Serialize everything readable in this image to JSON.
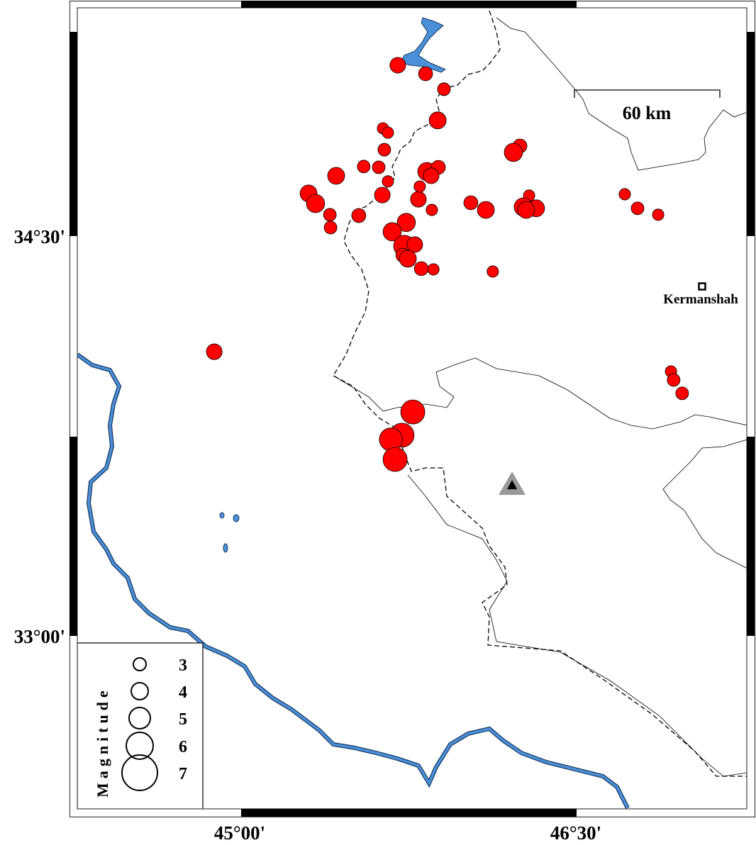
{
  "map": {
    "lon_ticks": [
      {
        "value": 45.0,
        "label": "45°00'"
      },
      {
        "value": 46.5,
        "label": "46°30'"
      }
    ],
    "lat_ticks": [
      {
        "value": 34.5,
        "label": "34°30'"
      },
      {
        "value": 33.0,
        "label": "33°00'"
      }
    ],
    "scale_bar": {
      "label": "60 km"
    },
    "city": {
      "name": "Kermanshah",
      "lon": 47.057,
      "lat": 34.311
    },
    "station_marker": {
      "lon": 46.209,
      "lat": 33.566,
      "symbol": "triangle"
    },
    "colors": {
      "event_fill": "#ff0000",
      "river": "#4a90d9",
      "marker": "#999999"
    }
  },
  "legend": {
    "title": "Magnitude",
    "entries": [
      {
        "mag": 3,
        "label": "3"
      },
      {
        "mag": 4,
        "label": "4"
      },
      {
        "mag": 5,
        "label": "5"
      },
      {
        "mag": 6,
        "label": "6"
      },
      {
        "mag": 7,
        "label": "7"
      }
    ]
  },
  "events": [
    {
      "lon": 45.699,
      "lat": 35.141,
      "mag": 3.7
    },
    {
      "lon": 45.823,
      "lat": 35.109,
      "mag": 3.3
    },
    {
      "lon": 45.905,
      "lat": 35.051,
      "mag": 3.0
    },
    {
      "lon": 45.877,
      "lat": 34.934,
      "mag": 4.0
    },
    {
      "lon": 45.633,
      "lat": 34.904,
      "mag": 2.7
    },
    {
      "lon": 45.655,
      "lat": 34.888,
      "mag": 2.7
    },
    {
      "lon": 45.639,
      "lat": 34.824,
      "mag": 3.0
    },
    {
      "lon": 45.424,
      "lat": 34.726,
      "mag": 4.0
    },
    {
      "lon": 45.547,
      "lat": 34.761,
      "mag": 3.0
    },
    {
      "lon": 45.614,
      "lat": 34.758,
      "mag": 3.0
    },
    {
      "lon": 45.655,
      "lat": 34.705,
      "mag": 2.7
    },
    {
      "lon": 45.301,
      "lat": 34.66,
      "mag": 4.0
    },
    {
      "lon": 45.332,
      "lat": 34.622,
      "mag": 4.3
    },
    {
      "lon": 45.396,
      "lat": 34.58,
      "mag": 3.0
    },
    {
      "lon": 45.399,
      "lat": 34.532,
      "mag": 3.0
    },
    {
      "lon": 45.525,
      "lat": 34.577,
      "mag": 3.3
    },
    {
      "lon": 45.63,
      "lat": 34.654,
      "mag": 3.7
    },
    {
      "lon": 45.791,
      "lat": 34.638,
      "mag": 3.7
    },
    {
      "lon": 45.797,
      "lat": 34.686,
      "mag": 2.7
    },
    {
      "lon": 45.829,
      "lat": 34.742,
      "mag": 4.3
    },
    {
      "lon": 45.88,
      "lat": 34.758,
      "mag": 3.3
    },
    {
      "lon": 45.848,
      "lat": 34.726,
      "mag": 3.7
    },
    {
      "lon": 45.851,
      "lat": 34.598,
      "mag": 2.7
    },
    {
      "lon": 46.025,
      "lat": 34.625,
      "mag": 3.3
    },
    {
      "lon": 46.092,
      "lat": 34.598,
      "mag": 4.0
    },
    {
      "lon": 46.244,
      "lat": 34.838,
      "mag": 3.3
    },
    {
      "lon": 46.215,
      "lat": 34.814,
      "mag": 4.3
    },
    {
      "lon": 46.285,
      "lat": 34.652,
      "mag": 2.7
    },
    {
      "lon": 46.259,
      "lat": 34.609,
      "mag": 4.3
    },
    {
      "lon": 46.316,
      "lat": 34.604,
      "mag": 4.0
    },
    {
      "lon": 46.272,
      "lat": 34.598,
      "mag": 4.0
    },
    {
      "lon": 45.737,
      "lat": 34.551,
      "mag": 4.3
    },
    {
      "lon": 45.674,
      "lat": 34.516,
      "mag": 4.3
    },
    {
      "lon": 45.728,
      "lat": 34.463,
      "mag": 5.0
    },
    {
      "lon": 45.775,
      "lat": 34.468,
      "mag": 3.7
    },
    {
      "lon": 45.722,
      "lat": 34.428,
      "mag": 3.3
    },
    {
      "lon": 45.744,
      "lat": 34.415,
      "mag": 4.0
    },
    {
      "lon": 45.804,
      "lat": 34.378,
      "mag": 3.3
    },
    {
      "lon": 45.858,
      "lat": 34.375,
      "mag": 2.7
    },
    {
      "lon": 46.123,
      "lat": 34.367,
      "mag": 2.7
    },
    {
      "lon": 46.712,
      "lat": 34.657,
      "mag": 2.7
    },
    {
      "lon": 46.769,
      "lat": 34.604,
      "mag": 3.0
    },
    {
      "lon": 46.861,
      "lat": 34.58,
      "mag": 2.7
    },
    {
      "lon": 44.88,
      "lat": 34.066,
      "mag": 3.7
    },
    {
      "lon": 46.918,
      "lat": 33.992,
      "mag": 2.7
    },
    {
      "lon": 46.93,
      "lat": 33.96,
      "mag": 3.0
    },
    {
      "lon": 46.968,
      "lat": 33.91,
      "mag": 3.0
    },
    {
      "lon": 45.766,
      "lat": 33.84,
      "mag": 5.5
    },
    {
      "lon": 45.718,
      "lat": 33.753,
      "mag": 5.5
    },
    {
      "lon": 45.668,
      "lat": 33.737,
      "mag": 5.3
    },
    {
      "lon": 45.687,
      "lat": 33.662,
      "mag": 5.5
    }
  ]
}
